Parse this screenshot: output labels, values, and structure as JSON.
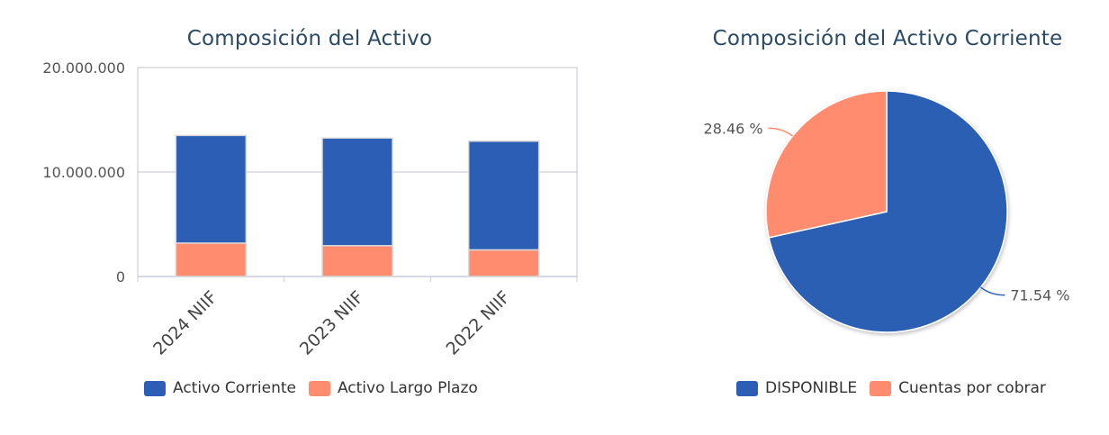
{
  "colors": {
    "activo_corriente": "#2b5eb4",
    "activo_largo_plazo": "#ff8c6e",
    "axis": "#c8ccd8",
    "grid": "#c0c4cc",
    "tick_text": "#555555"
  },
  "chart_data": [
    {
      "type": "bar",
      "stacked": true,
      "title": "Composición del Activo",
      "categories": [
        "2024 NIIF",
        "2023 NIIF",
        "2022 NIIF"
      ],
      "series": [
        {
          "name": "Activo Corriente",
          "values": [
            10300000,
            10300000,
            10400000
          ]
        },
        {
          "name": "Activo Largo Plazo",
          "values": [
            3200000,
            2950000,
            2550000
          ]
        }
      ],
      "y_ticks": [
        "0",
        "10.000.000",
        "20.000.000"
      ],
      "ylim": [
        0,
        20000000
      ],
      "grid": true,
      "legend": "bottom"
    },
    {
      "type": "pie",
      "title": "Composición del Activo Corriente",
      "slices": [
        {
          "name": "DISPONIBLE",
          "value": 71.54,
          "label": "71.54 %"
        },
        {
          "name": "Cuentas por cobrar",
          "value": 28.46,
          "label": "28.46 %"
        }
      ],
      "legend": "bottom"
    }
  ]
}
